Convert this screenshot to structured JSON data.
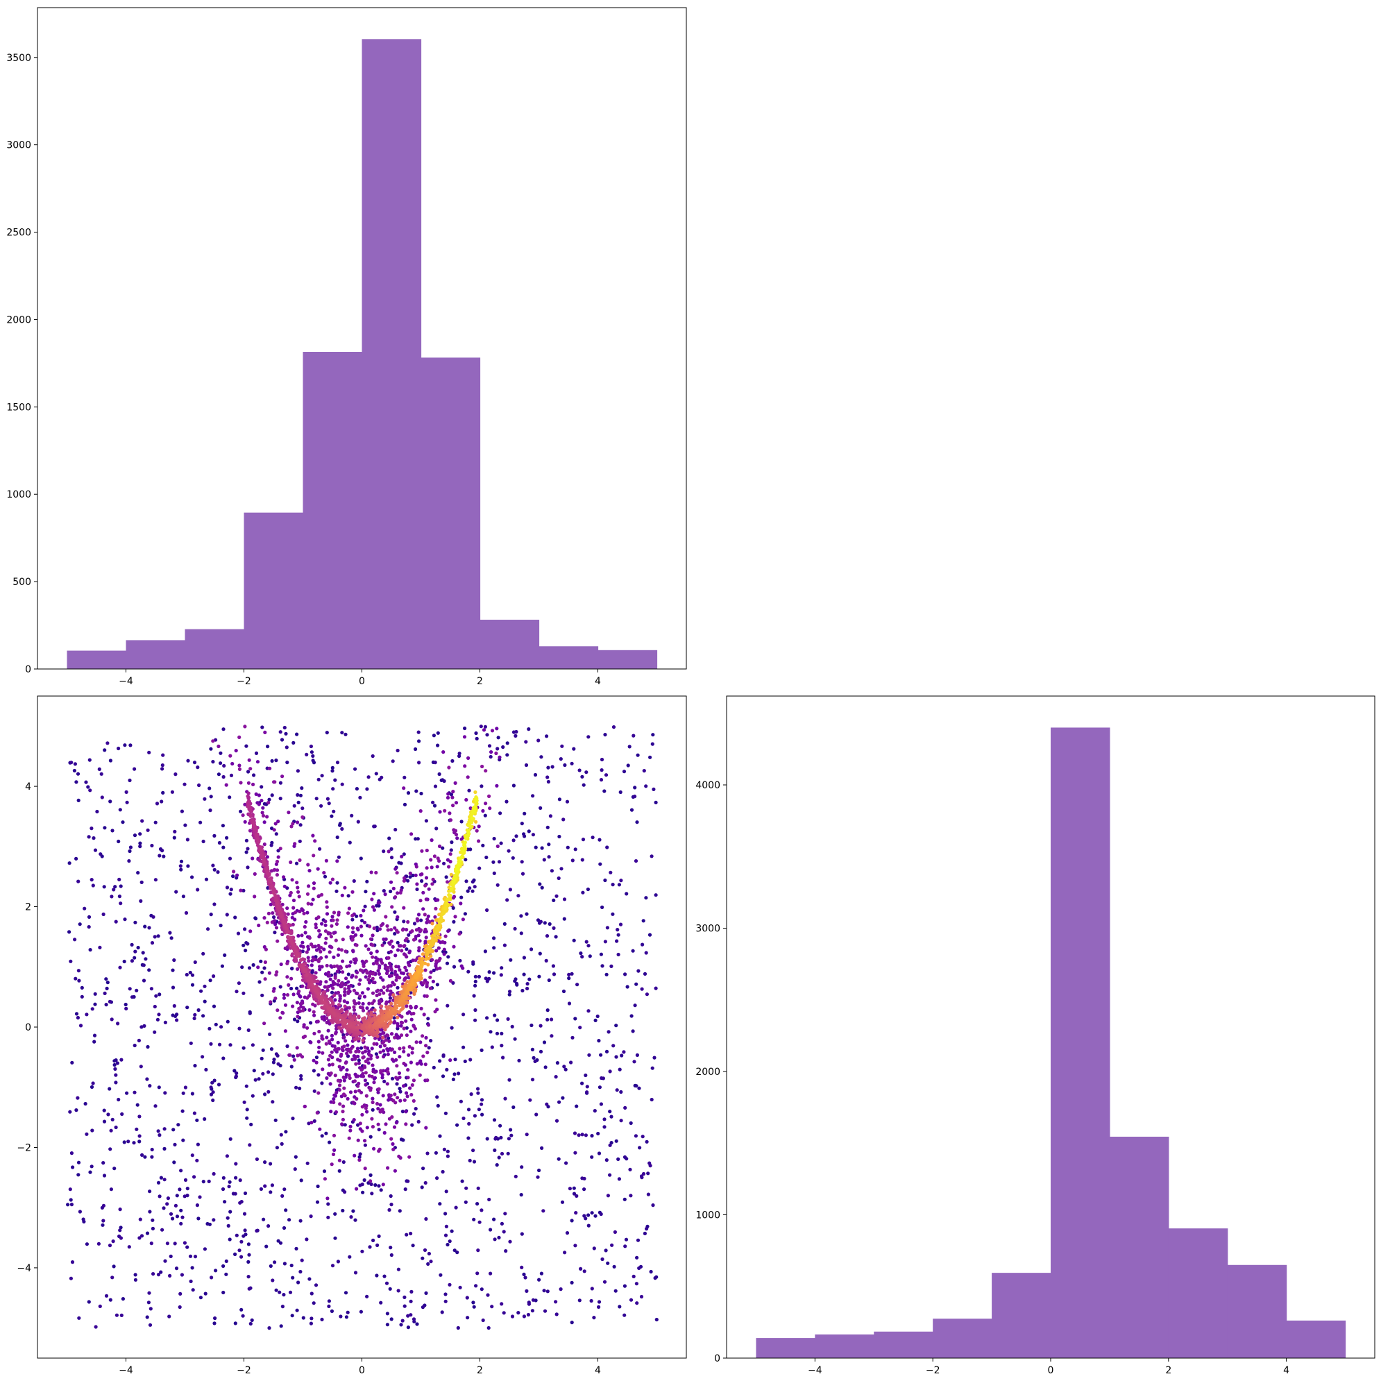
{
  "figure": {
    "colors": {
      "hist_fill": "#9467bd",
      "frame": "#000000"
    }
  },
  "chart_data": [
    {
      "panel": "top-left",
      "type": "bar",
      "subtype": "histogram",
      "title": "",
      "xlabel": "",
      "ylabel": "",
      "bin_edges": [
        -5,
        -4,
        -3,
        -2,
        -1,
        0,
        1,
        2,
        3,
        4,
        5
      ],
      "values": [
        105,
        165,
        228,
        895,
        1815,
        3605,
        1782,
        282,
        130,
        108
      ],
      "xlim": [
        -5.5,
        5.5
      ],
      "ylim": [
        0,
        3785
      ],
      "xticks": [
        -4,
        -2,
        0,
        2,
        4
      ],
      "xtick_labels": [
        "−4",
        "−2",
        "0",
        "2",
        "4"
      ],
      "yticks": [
        0,
        500,
        1000,
        1500,
        2000,
        2500,
        3000,
        3500
      ],
      "ytick_labels": [
        "0",
        "500",
        "1000",
        "1500",
        "2000",
        "2500",
        "3000",
        "3500"
      ],
      "color": "#9467bd",
      "grid": false
    },
    {
      "panel": "bottom-left",
      "type": "scatter",
      "title": "",
      "xlabel": "",
      "ylabel": "",
      "description_of_data": "about 5000 points; uniform background over [-5,5]x[-5,5] plus a dense curved band along y = x^2, colored by local density (plasma colormap)",
      "xlim": [
        -5.5,
        5.5
      ],
      "ylim": [
        -5.5,
        5.5
      ],
      "xticks": [
        -4,
        -2,
        0,
        2,
        4
      ],
      "xtick_labels": [
        "−4",
        "−2",
        "0",
        "2",
        "4"
      ],
      "yticks": [
        -4,
        -2,
        0,
        2,
        4
      ],
      "ytick_labels": [
        "−4",
        "−2",
        "0",
        "2",
        "4"
      ],
      "colormap": [
        "#0d0887",
        "#6a00a8",
        "#b12a90",
        "#e16462",
        "#fca636",
        "#f0f921"
      ],
      "grid": false
    },
    {
      "panel": "bottom-right",
      "type": "bar",
      "subtype": "histogram",
      "title": "",
      "xlabel": "",
      "ylabel": "",
      "bin_edges": [
        -5,
        -4,
        -3,
        -2,
        -1,
        0,
        1,
        2,
        3,
        4,
        5
      ],
      "values": [
        140,
        165,
        185,
        275,
        595,
        4400,
        1545,
        905,
        650,
        262
      ],
      "xlim": [
        -5.5,
        5.5
      ],
      "ylim": [
        0,
        4620
      ],
      "xticks": [
        -4,
        -2,
        0,
        2,
        4
      ],
      "xtick_labels": [
        "−4",
        "−2",
        "0",
        "2",
        "4"
      ],
      "yticks": [
        0,
        1000,
        2000,
        3000,
        4000
      ],
      "ytick_labels": [
        "0",
        "1000",
        "2000",
        "3000",
        "4000"
      ],
      "color": "#9467bd",
      "grid": false
    }
  ]
}
